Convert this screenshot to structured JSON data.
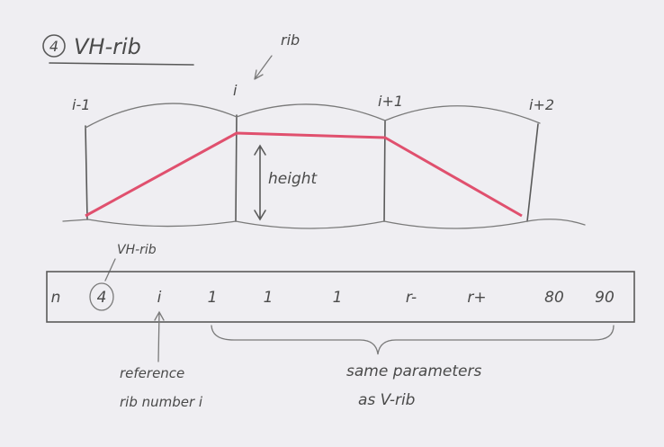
{
  "title": {
    "number": "4",
    "text": "VH-rib"
  },
  "rib_annotation": "rib",
  "ribs": [
    "i-1",
    "i",
    "i+1",
    "i+2"
  ],
  "height_label": "height",
  "row_annotation": "VH-rib",
  "row": [
    "n",
    "4",
    "i",
    "1",
    "1",
    "1",
    "r-",
    "r+",
    "80",
    "90"
  ],
  "notes": {
    "reference": [
      "reference",
      "rib number i"
    ],
    "same": [
      "same parameters",
      "as V-rib"
    ]
  }
}
